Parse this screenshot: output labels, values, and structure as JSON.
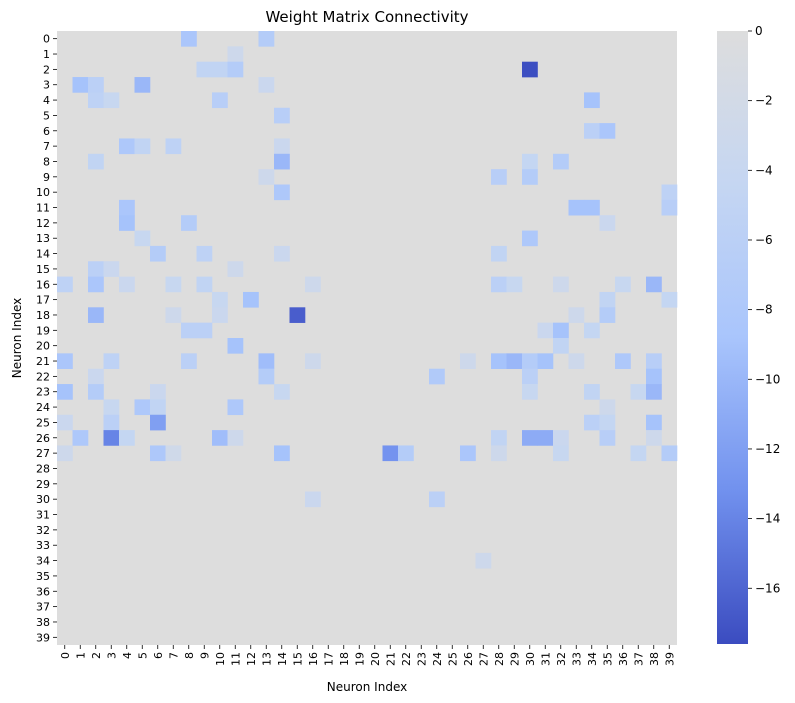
{
  "chart_data": {
    "type": "heatmap",
    "title": "Weight Matrix Connectivity",
    "xlabel": "Neuron Index",
    "ylabel": "Neuron Index",
    "rows": 40,
    "cols": 40,
    "x_ticks": [
      "0",
      "1",
      "2",
      "3",
      "4",
      "5",
      "6",
      "7",
      "8",
      "9",
      "10",
      "11",
      "12",
      "13",
      "14",
      "15",
      "16",
      "17",
      "18",
      "19",
      "20",
      "21",
      "22",
      "23",
      "24",
      "25",
      "26",
      "27",
      "28",
      "29",
      "30",
      "31",
      "32",
      "33",
      "34",
      "35",
      "36",
      "37",
      "38",
      "39"
    ],
    "y_ticks": [
      "0",
      "1",
      "2",
      "3",
      "4",
      "5",
      "6",
      "7",
      "8",
      "9",
      "10",
      "11",
      "12",
      "13",
      "14",
      "15",
      "16",
      "17",
      "18",
      "19",
      "20",
      "21",
      "22",
      "23",
      "24",
      "25",
      "26",
      "27",
      "28",
      "29",
      "30",
      "31",
      "32",
      "33",
      "34",
      "35",
      "36",
      "37",
      "38",
      "39"
    ],
    "colorbar": {
      "vmin": -17.6,
      "vmax": 0,
      "ticks": [
        0,
        -2,
        -4,
        -6,
        -8,
        -10,
        -12,
        -14,
        -16
      ],
      "tick_labels": [
        "0",
        "−2",
        "−4",
        "−6",
        "−8",
        "−10",
        "−12",
        "−14",
        "−16"
      ]
    },
    "nonzero_cells": [
      [
        0,
        8,
        -8.5
      ],
      [
        0,
        13,
        -7
      ],
      [
        1,
        11,
        -3
      ],
      [
        2,
        9,
        -5
      ],
      [
        2,
        10,
        -5
      ],
      [
        2,
        11,
        -7
      ],
      [
        2,
        30,
        -17.5
      ],
      [
        3,
        1,
        -9
      ],
      [
        3,
        2,
        -6
      ],
      [
        3,
        5,
        -10
      ],
      [
        3,
        13,
        -3.5
      ],
      [
        4,
        2,
        -5.5
      ],
      [
        4,
        3,
        -4
      ],
      [
        4,
        10,
        -6.5
      ],
      [
        4,
        34,
        -9
      ],
      [
        5,
        14,
        -6.5
      ],
      [
        6,
        34,
        -6
      ],
      [
        6,
        35,
        -8.5
      ],
      [
        7,
        4,
        -8
      ],
      [
        7,
        5,
        -5
      ],
      [
        7,
        7,
        -5.5
      ],
      [
        7,
        14,
        -3.5
      ],
      [
        8,
        2,
        -5
      ],
      [
        8,
        14,
        -10
      ],
      [
        8,
        30,
        -4.5
      ],
      [
        8,
        32,
        -7
      ],
      [
        9,
        13,
        -3
      ],
      [
        9,
        28,
        -6.5
      ],
      [
        9,
        30,
        -7
      ],
      [
        10,
        14,
        -8
      ],
      [
        10,
        39,
        -5.5
      ],
      [
        11,
        4,
        -8.5
      ],
      [
        11,
        33,
        -9
      ],
      [
        11,
        34,
        -9
      ],
      [
        11,
        39,
        -6.5
      ],
      [
        12,
        4,
        -9
      ],
      [
        12,
        8,
        -7
      ],
      [
        12,
        35,
        -3.5
      ],
      [
        13,
        5,
        -4
      ],
      [
        13,
        30,
        -8
      ],
      [
        14,
        6,
        -7
      ],
      [
        14,
        9,
        -5.5
      ],
      [
        14,
        14,
        -3.5
      ],
      [
        14,
        28,
        -5
      ],
      [
        15,
        2,
        -6
      ],
      [
        15,
        3,
        -3.5
      ],
      [
        15,
        11,
        -3
      ],
      [
        16,
        0,
        -5.5
      ],
      [
        16,
        2,
        -8.5
      ],
      [
        16,
        4,
        -3.5
      ],
      [
        16,
        7,
        -4
      ],
      [
        16,
        9,
        -5
      ],
      [
        16,
        16,
        -3
      ],
      [
        16,
        28,
        -6
      ],
      [
        16,
        29,
        -4
      ],
      [
        16,
        32,
        -3
      ],
      [
        16,
        36,
        -4
      ],
      [
        16,
        38,
        -10
      ],
      [
        17,
        10,
        -4
      ],
      [
        17,
        12,
        -9
      ],
      [
        17,
        35,
        -5
      ],
      [
        17,
        39,
        -4.5
      ],
      [
        18,
        2,
        -10
      ],
      [
        18,
        7,
        -3
      ],
      [
        18,
        10,
        -3.5
      ],
      [
        18,
        15,
        -16.5
      ],
      [
        18,
        33,
        -3
      ],
      [
        18,
        35,
        -7
      ],
      [
        19,
        8,
        -6
      ],
      [
        19,
        9,
        -6
      ],
      [
        19,
        31,
        -3.5
      ],
      [
        19,
        32,
        -9
      ],
      [
        19,
        34,
        -4.5
      ],
      [
        20,
        11,
        -9
      ],
      [
        20,
        32,
        -5
      ],
      [
        21,
        0,
        -8.5
      ],
      [
        21,
        3,
        -5.5
      ],
      [
        21,
        8,
        -6
      ],
      [
        21,
        13,
        -9.5
      ],
      [
        21,
        16,
        -3
      ],
      [
        21,
        26,
        -3
      ],
      [
        21,
        28,
        -9
      ],
      [
        21,
        29,
        -10
      ],
      [
        21,
        30,
        -7
      ],
      [
        21,
        31,
        -9
      ],
      [
        21,
        33,
        -3
      ],
      [
        21,
        36,
        -8
      ],
      [
        21,
        38,
        -6.5
      ],
      [
        22,
        2,
        -3.5
      ],
      [
        22,
        13,
        -7
      ],
      [
        22,
        24,
        -7.5
      ],
      [
        22,
        30,
        -6
      ],
      [
        22,
        38,
        -9
      ],
      [
        23,
        0,
        -9
      ],
      [
        23,
        2,
        -7
      ],
      [
        23,
        6,
        -3.5
      ],
      [
        23,
        14,
        -4
      ],
      [
        23,
        30,
        -4
      ],
      [
        23,
        34,
        -5
      ],
      [
        23,
        37,
        -4
      ],
      [
        23,
        38,
        -10
      ],
      [
        24,
        3,
        -4
      ],
      [
        24,
        5,
        -8
      ],
      [
        24,
        6,
        -5
      ],
      [
        24,
        11,
        -8
      ],
      [
        24,
        35,
        -3
      ],
      [
        25,
        0,
        -3.5
      ],
      [
        25,
        3,
        -6
      ],
      [
        25,
        6,
        -12
      ],
      [
        25,
        34,
        -6
      ],
      [
        25,
        35,
        -4.5
      ],
      [
        25,
        38,
        -9
      ],
      [
        26,
        1,
        -8
      ],
      [
        26,
        3,
        -14
      ],
      [
        26,
        4,
        -4.5
      ],
      [
        26,
        10,
        -9.5
      ],
      [
        26,
        11,
        -3
      ],
      [
        26,
        28,
        -5
      ],
      [
        26,
        30,
        -11
      ],
      [
        26,
        31,
        -11
      ],
      [
        26,
        32,
        -3.5
      ],
      [
        26,
        35,
        -6.5
      ],
      [
        26,
        38,
        -3
      ],
      [
        27,
        0,
        -3
      ],
      [
        27,
        6,
        -8
      ],
      [
        27,
        7,
        -2.5
      ],
      [
        27,
        14,
        -9
      ],
      [
        27,
        21,
        -13
      ],
      [
        27,
        22,
        -7
      ],
      [
        27,
        26,
        -8.5
      ],
      [
        27,
        28,
        -3
      ],
      [
        27,
        32,
        -4
      ],
      [
        27,
        37,
        -4.5
      ],
      [
        27,
        39,
        -7
      ],
      [
        30,
        16,
        -3.5
      ],
      [
        30,
        24,
        -6
      ],
      [
        34,
        27,
        -3
      ]
    ]
  }
}
